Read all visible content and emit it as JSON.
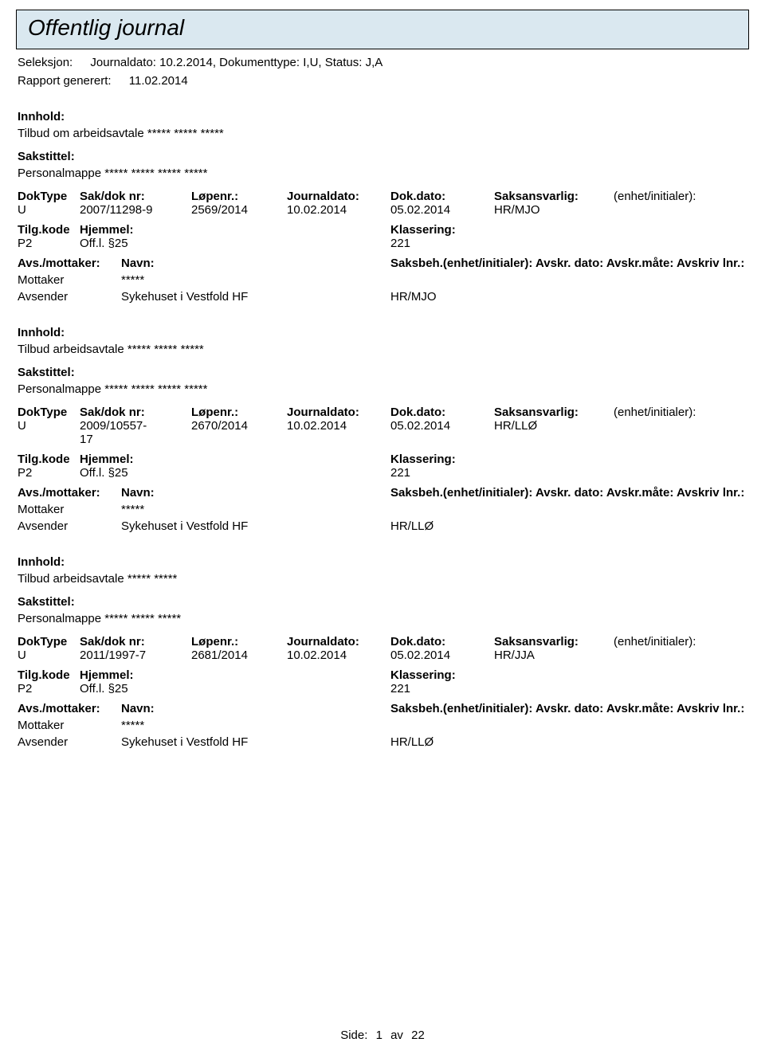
{
  "header": {
    "title": "Offentlig journal",
    "seleksjon_label": "Seleksjon:",
    "seleksjon_value": "Journaldato: 10.2.2014, Dokumenttype: I,U, Status: J,A",
    "rapport_label": "Rapport generert:",
    "rapport_value": "11.02.2014"
  },
  "labels": {
    "innhold": "Innhold:",
    "sakstittel": "Sakstittel:",
    "doktype": "DokType",
    "sakdok": "Sak/dok nr:",
    "lopenr": "Løpenr.:",
    "journaldato": "Journaldato:",
    "dokdato": "Dok.dato:",
    "saksansvarlig": "Saksansvarlig:",
    "enhet_init": "(enhet/initialer):",
    "tilgkode": "Tilg.kode",
    "hjemmel": "Hjemmel:",
    "klassering": "Klassering:",
    "avs_mottaker": "Avs./mottaker:",
    "navn": "Navn:",
    "saksbeh_line": "Saksbeh.(enhet/initialer): Avskr. dato: Avskr.måte: Avskriv lnr.:",
    "mottaker": "Mottaker",
    "avsender": "Avsender"
  },
  "entries": [
    {
      "innhold": "Tilbud om arbeidsavtale ***** ***** *****",
      "sakstittel": "Personalmappe ***** ***** ***** *****",
      "doktype": "U",
      "sakdok": "2007/11298-9",
      "lopenr": "2569/2014",
      "journaldato": "10.02.2014",
      "dokdato": "05.02.2014",
      "saksansvarlig": "HR/MJO",
      "enhet_init": "",
      "tilgkode": "P2",
      "hjemmel": "Off.l. §25",
      "klassering": "221",
      "mottaker_navn": "*****",
      "avsender_navn": "Sykehuset i Vestfold HF",
      "saksbeh_val": "HR/MJO"
    },
    {
      "innhold": "Tilbud arbeidsavtale ***** ***** *****",
      "sakstittel": "Personalmappe ***** ***** ***** *****",
      "doktype": "U",
      "sakdok": "2009/10557-17",
      "lopenr": "2670/2014",
      "journaldato": "10.02.2014",
      "dokdato": "05.02.2014",
      "saksansvarlig": "HR/LLØ",
      "enhet_init": "",
      "tilgkode": "P2",
      "hjemmel": "Off.l. §25",
      "klassering": "221",
      "mottaker_navn": "*****",
      "avsender_navn": "Sykehuset i Vestfold HF",
      "saksbeh_val": "HR/LLØ"
    },
    {
      "innhold": "Tilbud arbeidsavtale ***** *****",
      "sakstittel": "Personalmappe ***** ***** *****",
      "doktype": "U",
      "sakdok": "2011/1997-7",
      "lopenr": "2681/2014",
      "journaldato": "10.02.2014",
      "dokdato": "05.02.2014",
      "saksansvarlig": "HR/JJA",
      "enhet_init": "",
      "tilgkode": "P2",
      "hjemmel": "Off.l. §25",
      "klassering": "221",
      "mottaker_navn": "*****",
      "avsender_navn": "Sykehuset i Vestfold HF",
      "saksbeh_val": "HR/LLØ"
    }
  ],
  "footer": {
    "side_label": "Side:",
    "page_current": "1",
    "page_sep": "av",
    "page_total": "22"
  },
  "style": {
    "title_bg": "#dae8f0",
    "border_color": "#000000",
    "text_color": "#000000",
    "page_bg": "#ffffff",
    "title_fontsize": 28,
    "body_fontsize": 15
  }
}
